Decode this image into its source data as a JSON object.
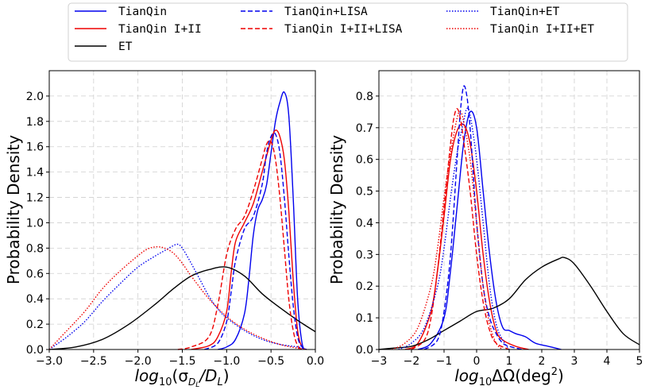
{
  "legend": {
    "entries": [
      {
        "label": "TianQin",
        "color": "#0000ee",
        "dash": "solid"
      },
      {
        "label": "TianQin I+II",
        "color": "#ee0000",
        "dash": "solid"
      },
      {
        "label": "ET",
        "color": "#000000",
        "dash": "solid"
      },
      {
        "label": "TianQin+LISA",
        "color": "#0000ee",
        "dash": "dashed"
      },
      {
        "label": "TianQin I+II+LISA",
        "color": "#ee0000",
        "dash": "dashed"
      },
      {
        "label": "TianQin+ET",
        "color": "#0000ee",
        "dash": "dotted"
      },
      {
        "label": "TianQin I+II+ET",
        "color": "#ee0000",
        "dash": "dotted"
      }
    ]
  },
  "chart_data": [
    {
      "type": "line",
      "title": "",
      "ylabel": "Probability Density",
      "xlabel_parts": {
        "base": "log",
        "sub": "10",
        "open": "(σ",
        "sub2": "D",
        "sub3": "L",
        "rest": "/D",
        "sub4": "L",
        "close": ")"
      },
      "xlim": [
        -3.0,
        0.0
      ],
      "ylim": [
        0,
        2.2
      ],
      "xticks": [
        -3.0,
        -2.5,
        -2.0,
        -1.5,
        -1.0,
        -0.5,
        0.0
      ],
      "xtick_labels": [
        "−3.0",
        "−2.5",
        "−2.0",
        "−1.5",
        "−1.0",
        "−0.5",
        "0.0"
      ],
      "yticks": [
        0,
        0.2,
        0.4,
        0.6,
        0.8,
        1.0,
        1.2,
        1.4,
        1.6,
        1.8,
        2.0
      ],
      "ytick_labels": [
        "0.0",
        "0.2",
        "0.4",
        "0.6",
        "0.8",
        "1.0",
        "1.2",
        "1.4",
        "1.6",
        "1.8",
        "2.0"
      ],
      "series": [
        {
          "name": "TianQin",
          "x": [
            -1.1,
            -1.0,
            -0.9,
            -0.8,
            -0.75,
            -0.7,
            -0.65,
            -0.6,
            -0.55,
            -0.5,
            -0.45,
            -0.4,
            -0.35,
            -0.3,
            -0.25,
            -0.2,
            -0.15,
            -0.1
          ],
          "y": [
            0.0,
            0.02,
            0.08,
            0.28,
            0.55,
            0.9,
            1.1,
            1.18,
            1.3,
            1.55,
            1.8,
            1.95,
            2.03,
            1.85,
            1.2,
            0.4,
            0.05,
            0.0
          ]
        },
        {
          "name": "TianQin I+II",
          "x": [
            -1.4,
            -1.2,
            -1.1,
            -1.0,
            -0.95,
            -0.9,
            -0.8,
            -0.7,
            -0.6,
            -0.5,
            -0.45,
            -0.4,
            -0.35,
            -0.3,
            -0.25,
            -0.2,
            -0.15,
            -0.1
          ],
          "y": [
            0.0,
            0.03,
            0.1,
            0.3,
            0.6,
            0.85,
            1.0,
            1.15,
            1.4,
            1.65,
            1.73,
            1.68,
            1.5,
            1.1,
            0.55,
            0.15,
            0.02,
            0.0
          ]
        },
        {
          "name": "ET",
          "x": [
            -3.0,
            -2.7,
            -2.4,
            -2.1,
            -1.8,
            -1.6,
            -1.4,
            -1.2,
            -1.0,
            -0.8,
            -0.6,
            -0.4,
            -0.2,
            0.0
          ],
          "y": [
            0.0,
            0.02,
            0.08,
            0.2,
            0.36,
            0.48,
            0.58,
            0.63,
            0.65,
            0.58,
            0.44,
            0.33,
            0.23,
            0.14
          ]
        },
        {
          "name": "TianQin+LISA",
          "x": [
            -1.25,
            -1.1,
            -1.0,
            -0.95,
            -0.9,
            -0.8,
            -0.7,
            -0.6,
            -0.55,
            -0.5,
            -0.45,
            -0.4,
            -0.35,
            -0.3,
            -0.25,
            -0.2,
            -0.15,
            -0.1
          ],
          "y": [
            0.0,
            0.05,
            0.22,
            0.45,
            0.7,
            0.95,
            1.05,
            1.3,
            1.55,
            1.68,
            1.7,
            1.55,
            1.2,
            0.75,
            0.35,
            0.1,
            0.02,
            0.0
          ]
        },
        {
          "name": "TianQin I+II+LISA",
          "x": [
            -1.55,
            -1.4,
            -1.2,
            -1.1,
            -1.0,
            -0.9,
            -0.8,
            -0.7,
            -0.6,
            -0.55,
            -0.5,
            -0.45,
            -0.4,
            -0.35,
            -0.3,
            -0.25,
            -0.2,
            -0.15
          ],
          "y": [
            0.0,
            0.02,
            0.1,
            0.35,
            0.75,
            0.95,
            1.05,
            1.25,
            1.5,
            1.62,
            1.64,
            1.5,
            1.2,
            0.8,
            0.4,
            0.15,
            0.03,
            0.0
          ]
        },
        {
          "name": "TianQin+ET",
          "x": [
            -3.0,
            -2.8,
            -2.6,
            -2.4,
            -2.2,
            -2.0,
            -1.8,
            -1.7,
            -1.6,
            -1.55,
            -1.5,
            -1.4,
            -1.3,
            -1.2,
            -1.1,
            -1.0,
            -0.8,
            -0.6,
            -0.4,
            -0.2,
            -0.1
          ],
          "y": [
            0.0,
            0.1,
            0.22,
            0.38,
            0.52,
            0.65,
            0.74,
            0.78,
            0.82,
            0.83,
            0.8,
            0.68,
            0.55,
            0.42,
            0.32,
            0.25,
            0.15,
            0.08,
            0.04,
            0.02,
            0.0
          ]
        },
        {
          "name": "TianQin I+II+ET",
          "x": [
            -3.0,
            -2.8,
            -2.6,
            -2.4,
            -2.2,
            -2.0,
            -1.9,
            -1.8,
            -1.7,
            -1.6,
            -1.5,
            -1.4,
            -1.2,
            -1.0,
            -0.8,
            -0.6,
            -0.4,
            -0.2,
            -0.1
          ],
          "y": [
            0.0,
            0.15,
            0.3,
            0.48,
            0.62,
            0.74,
            0.79,
            0.81,
            0.8,
            0.76,
            0.68,
            0.58,
            0.4,
            0.26,
            0.16,
            0.09,
            0.04,
            0.01,
            0.0
          ]
        }
      ]
    },
    {
      "type": "line",
      "title": "",
      "ylabel": "Probability Density",
      "xlabel_parts": {
        "base": "log",
        "sub": "10",
        "rest": "ΔΩ(deg",
        "sup": "2",
        "close": ")"
      },
      "xlim": [
        -3,
        5
      ],
      "ylim": [
        0,
        0.88
      ],
      "xticks": [
        -3,
        -2,
        -1,
        0,
        1,
        2,
        3,
        4,
        5
      ],
      "xtick_labels": [
        "−3",
        "−2",
        "−1",
        "0",
        "1",
        "2",
        "3",
        "4",
        "5"
      ],
      "yticks": [
        0,
        0.1,
        0.2,
        0.3,
        0.4,
        0.5,
        0.6,
        0.7,
        0.8
      ],
      "ytick_labels": [
        "0.0",
        "0.1",
        "0.2",
        "0.3",
        "0.4",
        "0.5",
        "0.6",
        "0.7",
        "0.8"
      ],
      "series": [
        {
          "name": "TianQin",
          "x": [
            -1.8,
            -1.4,
            -1.0,
            -0.8,
            -0.6,
            -0.4,
            -0.2,
            0.0,
            0.2,
            0.4,
            0.6,
            0.8,
            1.0,
            1.2,
            1.5,
            1.8,
            2.2,
            2.6
          ],
          "y": [
            0.0,
            0.02,
            0.1,
            0.25,
            0.45,
            0.65,
            0.75,
            0.7,
            0.5,
            0.3,
            0.15,
            0.07,
            0.06,
            0.05,
            0.04,
            0.02,
            0.01,
            0.0
          ]
        },
        {
          "name": "TianQin I+II",
          "x": [
            -2.2,
            -1.8,
            -1.4,
            -1.2,
            -1.0,
            -0.8,
            -0.6,
            -0.4,
            -0.2,
            0.0,
            0.2,
            0.4,
            0.6,
            0.8,
            1.2,
            1.6
          ],
          "y": [
            0.0,
            0.02,
            0.12,
            0.25,
            0.42,
            0.6,
            0.69,
            0.71,
            0.65,
            0.5,
            0.3,
            0.15,
            0.06,
            0.03,
            0.01,
            0.0
          ]
        },
        {
          "name": "ET",
          "x": [
            -3.0,
            -2.5,
            -2.0,
            -1.5,
            -1.0,
            -0.5,
            0.0,
            0.5,
            1.0,
            1.5,
            2.0,
            2.5,
            2.7,
            3.0,
            3.5,
            4.0,
            4.5,
            5.0
          ],
          "y": [
            0.0,
            0.005,
            0.01,
            0.03,
            0.06,
            0.09,
            0.12,
            0.13,
            0.16,
            0.22,
            0.26,
            0.285,
            0.29,
            0.27,
            0.2,
            0.12,
            0.05,
            0.015
          ]
        },
        {
          "name": "TianQin+LISA",
          "x": [
            -1.6,
            -1.2,
            -1.0,
            -0.8,
            -0.6,
            -0.5,
            -0.4,
            -0.3,
            -0.2,
            -0.1,
            0.0,
            0.2,
            0.4,
            0.6,
            0.8,
            1.0,
            1.4
          ],
          "y": [
            0.0,
            0.03,
            0.12,
            0.3,
            0.6,
            0.75,
            0.83,
            0.8,
            0.7,
            0.55,
            0.4,
            0.2,
            0.1,
            0.05,
            0.02,
            0.01,
            0.0
          ]
        },
        {
          "name": "TianQin I+II+LISA",
          "x": [
            -2.0,
            -1.6,
            -1.4,
            -1.2,
            -1.0,
            -0.8,
            -0.7,
            -0.6,
            -0.5,
            -0.4,
            -0.2,
            0.0,
            0.2,
            0.4,
            0.6,
            1.0
          ],
          "y": [
            0.0,
            0.03,
            0.1,
            0.25,
            0.45,
            0.65,
            0.73,
            0.76,
            0.73,
            0.66,
            0.5,
            0.3,
            0.15,
            0.06,
            0.02,
            0.0
          ]
        },
        {
          "name": "TianQin+ET",
          "x": [
            -2.4,
            -2.0,
            -1.6,
            -1.2,
            -1.0,
            -0.8,
            -0.6,
            -0.4,
            -0.3,
            -0.2,
            0.0,
            0.2,
            0.4,
            0.6,
            0.8,
            1.0
          ],
          "y": [
            0.0,
            0.02,
            0.07,
            0.2,
            0.32,
            0.48,
            0.62,
            0.72,
            0.76,
            0.74,
            0.6,
            0.4,
            0.2,
            0.08,
            0.03,
            0.0
          ]
        },
        {
          "name": "TianQin I+II+ET",
          "x": [
            -2.6,
            -2.2,
            -1.8,
            -1.4,
            -1.2,
            -1.0,
            -0.8,
            -0.6,
            -0.5,
            -0.4,
            -0.2,
            0.0,
            0.2,
            0.4,
            0.6,
            0.8
          ],
          "y": [
            0.0,
            0.02,
            0.07,
            0.2,
            0.32,
            0.48,
            0.62,
            0.73,
            0.75,
            0.72,
            0.6,
            0.4,
            0.2,
            0.08,
            0.02,
            0.0
          ]
        }
      ]
    }
  ]
}
